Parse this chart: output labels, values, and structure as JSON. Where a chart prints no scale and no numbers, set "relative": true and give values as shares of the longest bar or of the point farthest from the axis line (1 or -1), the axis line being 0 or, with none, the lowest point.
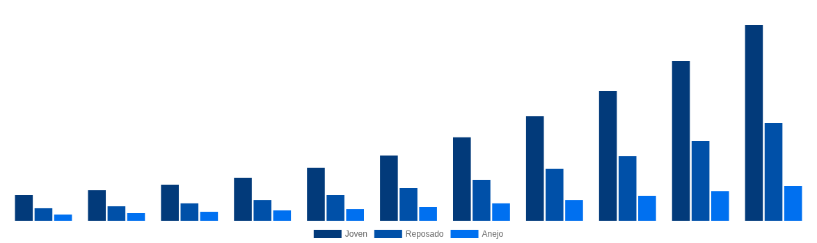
{
  "chart_data": {
    "type": "bar",
    "relative": true,
    "legend": "bottom",
    "categories": [
      null,
      null,
      null,
      null,
      null,
      null,
      null,
      null,
      null,
      null,
      null
    ],
    "series": [
      {
        "name": "Joven",
        "color": "#023a7a",
        "values": [
          0.131,
          0.156,
          0.184,
          0.22,
          0.27,
          0.333,
          0.426,
          0.535,
          0.663,
          0.816,
          1
        ]
      },
      {
        "name": "Reposado",
        "color": "#0050a8",
        "values": [
          0.064,
          0.074,
          0.089,
          0.106,
          0.131,
          0.167,
          0.209,
          0.266,
          0.33,
          0.408,
          0.5
        ]
      },
      {
        "name": "Anejo",
        "color": "#0070f0",
        "values": [
          0.032,
          0.039,
          0.046,
          0.053,
          0.06,
          0.071,
          0.089,
          0.106,
          0.128,
          0.152,
          0.177
        ]
      }
    ]
  }
}
